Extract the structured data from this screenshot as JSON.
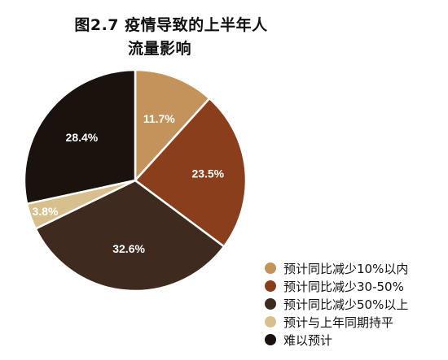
{
  "chart_data": {
    "type": "pie",
    "title_lines": [
      "图2.7 疫情导致的上半年人",
      "流量影响"
    ],
    "categories": [
      "预计同比减少10%以内",
      "预计同比减少30-50%",
      "预计同比减少50%以上",
      "预计与上年同期持平",
      "难以预计"
    ],
    "values": [
      11.7,
      23.5,
      32.6,
      3.8,
      28.4
    ],
    "value_labels": [
      "11.7%",
      "23.5%",
      "32.6%",
      "3.8%",
      "28.4%"
    ],
    "colors": [
      "#c4935c",
      "#8b3e1c",
      "#3e2a1f",
      "#d8c08e",
      "#1a120d"
    ],
    "label_colors": [
      "#ffffff",
      "#ffffff",
      "#ffffff",
      "#ffffff",
      "#ffffff"
    ],
    "legend_placement": "bottom-right",
    "start_angle": "12 o'clock, clockwise"
  }
}
